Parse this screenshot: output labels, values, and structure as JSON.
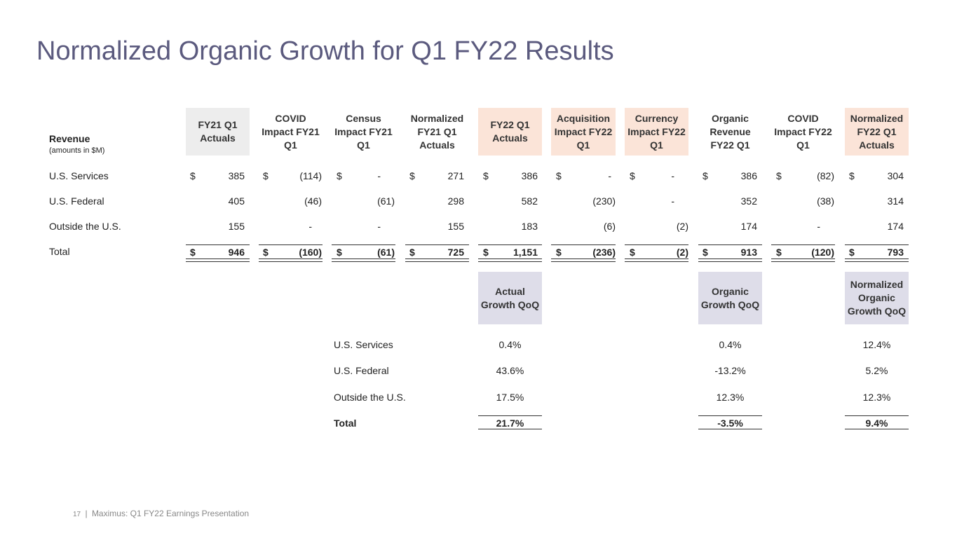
{
  "title": "Normalized Organic Growth for Q1 FY22 Results",
  "revenue_header": {
    "label": "Revenue",
    "sub": "(amounts in $M)"
  },
  "columns": [
    {
      "label": "FY21 Q1 Actuals",
      "style": "gray"
    },
    {
      "label": "COVID Impact FY21 Q1",
      "style": "gray"
    },
    {
      "label": "Census Impact FY21 Q1",
      "style": "gray"
    },
    {
      "label": "Normalized FY21 Q1 Actuals",
      "style": "gray"
    },
    {
      "label": "FY22 Q1 Actuals",
      "style": "peach"
    },
    {
      "label": "Acquisition Impact FY22 Q1",
      "style": "peach"
    },
    {
      "label": "Currency Impact FY22 Q1",
      "style": "peach"
    },
    {
      "label": "Organic Revenue FY22 Q1",
      "style": "peach"
    },
    {
      "label": "COVID Impact FY22 Q1",
      "style": "peach"
    },
    {
      "label": "Normalized FY22 Q1 Actuals",
      "style": "peach"
    }
  ],
  "rows": [
    {
      "label": "U.S. Services",
      "values": [
        "385",
        "(114)",
        "-",
        "271",
        "386",
        "-",
        "-",
        "386",
        "(82)",
        "304"
      ]
    },
    {
      "label": "U.S. Federal",
      "values": [
        "405",
        "(46)",
        "(61)",
        "298",
        "582",
        "(230)",
        "-",
        "352",
        "(38)",
        "314"
      ]
    },
    {
      "label": "Outside the U.S.",
      "values": [
        "155",
        "-",
        "-",
        "155",
        "183",
        "(6)",
        "(2)",
        "174",
        "-",
        "174"
      ]
    },
    {
      "label": "Total",
      "values": [
        "946",
        "(160)",
        "(61)",
        "725",
        "1,151",
        "(236)",
        "(2)",
        "913",
        "(120)",
        "793"
      ]
    }
  ],
  "currency_symbol": "$",
  "growth": {
    "headers": [
      "Actual Growth QoQ",
      "Organic Growth QoQ",
      "Normalized Organic Growth QoQ"
    ],
    "rows": [
      {
        "label": "U.S. Services",
        "values": [
          "0.4%",
          "0.4%",
          "12.4%"
        ]
      },
      {
        "label": "U.S. Federal",
        "values": [
          "43.6%",
          "-13.2%",
          "5.2%"
        ]
      },
      {
        "label": "Outside the U.S.",
        "values": [
          "17.5%",
          "12.3%",
          "12.3%"
        ]
      },
      {
        "label": "Total",
        "values": [
          "21.7%",
          "-3.5%",
          "9.4%"
        ]
      }
    ]
  },
  "footer": {
    "page": "17",
    "separator": "|",
    "text": "Maximus: Q1 FY22 Earnings Presentation"
  },
  "colors": {
    "title": "#5b5a7e",
    "gray_header": "#ededed",
    "peach_header": "#fbe4d8",
    "lavender_header": "#dedde9"
  }
}
